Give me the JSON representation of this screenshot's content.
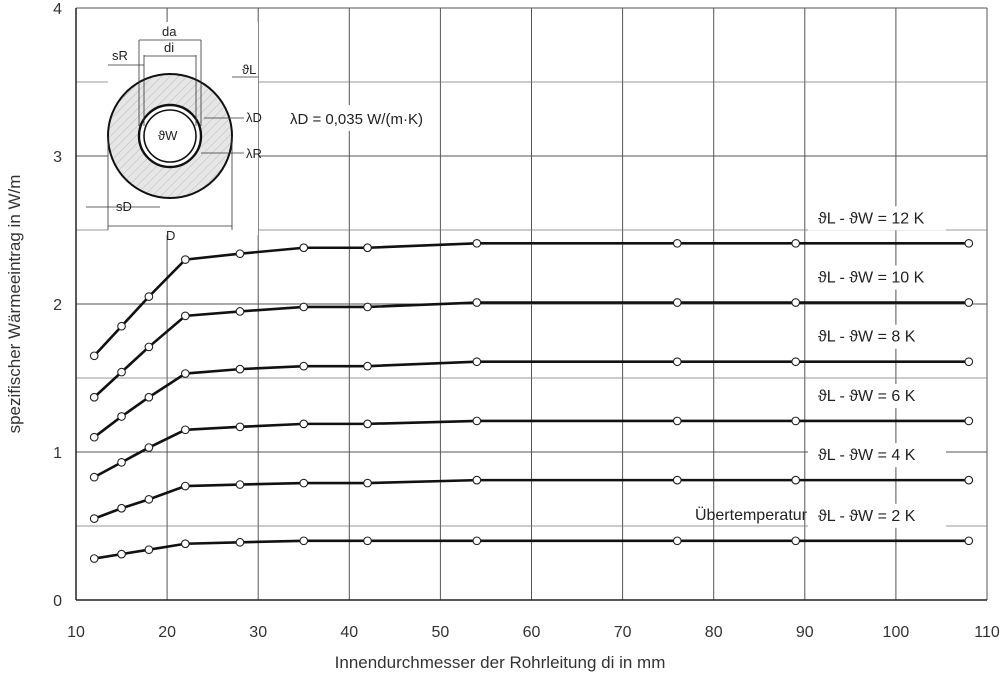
{
  "chart_data": {
    "type": "line",
    "xlabel": "Innendurchmesser der Rohrleitung  di in mm",
    "ylabel": "spezifischer Wärmeeintrag  in  W/m",
    "xlim": [
      10,
      110
    ],
    "ylim": [
      0,
      4
    ],
    "xticks": [
      "10",
      "20",
      "30",
      "40",
      "50",
      "60",
      "70",
      "80",
      "90",
      "100",
      "110"
    ],
    "yticks": [
      "0",
      "1",
      "2",
      "3",
      "4"
    ],
    "grid": true,
    "x": [
      12,
      15,
      18,
      22,
      28,
      35,
      42,
      54,
      76,
      89,
      108
    ],
    "series": [
      {
        "name": "ϑL - ϑW = 12 K",
        "values": [
          1.65,
          1.85,
          2.05,
          2.3,
          2.34,
          2.38,
          2.38,
          2.41,
          2.41,
          2.41,
          2.41
        ]
      },
      {
        "name": "ϑL - ϑW = 10 K",
        "values": [
          1.37,
          1.54,
          1.71,
          1.92,
          1.95,
          1.98,
          1.98,
          2.01,
          2.01,
          2.01,
          2.01
        ]
      },
      {
        "name": "ϑL - ϑW = 8 K",
        "values": [
          1.1,
          1.24,
          1.37,
          1.53,
          1.56,
          1.58,
          1.58,
          1.61,
          1.61,
          1.61,
          1.61
        ]
      },
      {
        "name": "ϑL - ϑW = 6 K",
        "values": [
          0.83,
          0.93,
          1.03,
          1.15,
          1.17,
          1.19,
          1.19,
          1.21,
          1.21,
          1.21,
          1.21
        ]
      },
      {
        "name": "ϑL - ϑW = 4 K",
        "values": [
          0.55,
          0.62,
          0.68,
          0.77,
          0.78,
          0.79,
          0.79,
          0.81,
          0.81,
          0.81,
          0.81
        ]
      },
      {
        "name": "ϑL - ϑW = 2 K",
        "values": [
          0.28,
          0.31,
          0.34,
          0.38,
          0.39,
          0.4,
          0.4,
          0.4,
          0.4,
          0.4,
          0.4
        ]
      }
    ],
    "annotations": {
      "uebertemperatur": "Übertemperatur",
      "lambda_text": "λD = 0,035 W/(m·K)",
      "inset": {
        "da": "da",
        "di": "di",
        "sR": "sR",
        "sD": "sD",
        "D": "D",
        "thetaL": "ϑL",
        "thetaW": "ϑW",
        "lambdaD": "λD",
        "lambdaR": "λR"
      }
    }
  }
}
